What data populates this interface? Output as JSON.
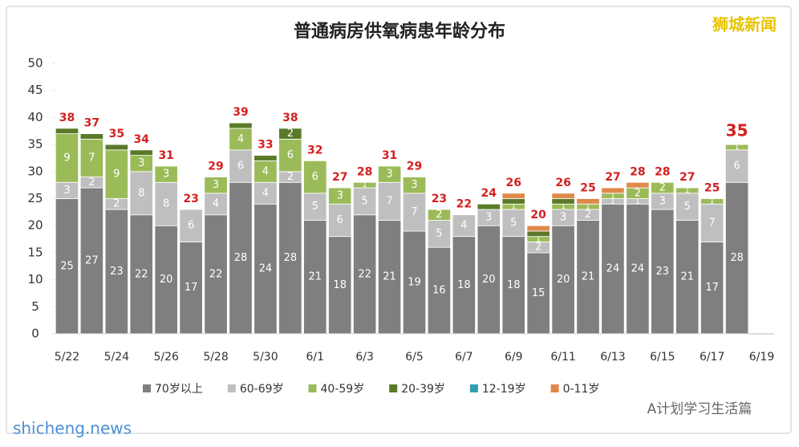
{
  "chart_data": {
    "type": "stacked_bar",
    "title": "普通病房供氧病患年龄分布",
    "watermarks": [
      "狮城新闻",
      "A计划学习生活篇",
      "shicheng.news"
    ],
    "categories": [
      "5/22",
      null,
      "5/24",
      null,
      "5/26",
      null,
      "5/28",
      null,
      "5/30",
      null,
      "6/1",
      null,
      "6/3",
      null,
      "6/5",
      null,
      "6/7",
      null,
      "6/9",
      null,
      "6/11",
      null,
      "6/13",
      null,
      "6/15",
      null,
      "6/17",
      null,
      "6/19"
    ],
    "series": [
      {
        "name": "70岁以上",
        "color": "#7f7f7f",
        "values": [
          25,
          27,
          23,
          22,
          20,
          17,
          22,
          28,
          24,
          28,
          21,
          18,
          22,
          21,
          19,
          16,
          18,
          20,
          18,
          15,
          20,
          21,
          24,
          24,
          23,
          21,
          17,
          28,
          null
        ]
      },
      {
        "name": "60-69岁",
        "color": "#bfbfbf",
        "values": [
          3,
          2,
          2,
          8,
          8,
          6,
          4,
          6,
          4,
          2,
          5,
          6,
          5,
          7,
          7,
          5,
          4,
          3,
          5,
          2,
          3,
          2,
          1,
          1,
          3,
          5,
          7,
          6,
          null
        ]
      },
      {
        "name": "40-59岁",
        "color": "#9bbb59",
        "values": [
          9,
          7,
          9,
          3,
          3,
          0,
          3,
          4,
          4,
          6,
          6,
          3,
          1,
          3,
          3,
          2,
          0,
          0,
          1,
          1,
          1,
          1,
          1,
          2,
          2,
          1,
          1,
          1,
          null
        ]
      },
      {
        "name": "20-39岁",
        "color": "#5a7a2a",
        "values": [
          1,
          1,
          1,
          1,
          0,
          0,
          0,
          1,
          1,
          2,
          0,
          0,
          0,
          0,
          0,
          0,
          0,
          1,
          1,
          1,
          1,
          0,
          0,
          0,
          0,
          0,
          0,
          0,
          null
        ]
      },
      {
        "name": "12-19岁",
        "color": "#31a0b0",
        "values": [
          0,
          0,
          0,
          0,
          0,
          0,
          0,
          0,
          0,
          0,
          0,
          0,
          0,
          0,
          0,
          0,
          0,
          0,
          0,
          0,
          0,
          0,
          0,
          0,
          0,
          0,
          0,
          0,
          null
        ]
      },
      {
        "name": "0-11岁",
        "color": "#e0894a",
        "values": [
          0,
          0,
          0,
          0,
          0,
          0,
          0,
          0,
          0,
          0,
          0,
          0,
          0,
          0,
          0,
          0,
          0,
          0,
          1,
          1,
          1,
          1,
          1,
          1,
          0,
          0,
          0,
          0,
          null
        ]
      }
    ],
    "totals": [
      38,
      37,
      35,
      34,
      31,
      23,
      29,
      39,
      33,
      38,
      32,
      27,
      28,
      31,
      29,
      23,
      22,
      24,
      26,
      20,
      26,
      25,
      27,
      28,
      28,
      27,
      25,
      35,
      null
    ],
    "ylim": [
      0,
      50
    ],
    "yticks": [
      0,
      5,
      10,
      15,
      20,
      25,
      30,
      35,
      40,
      45,
      50
    ]
  }
}
